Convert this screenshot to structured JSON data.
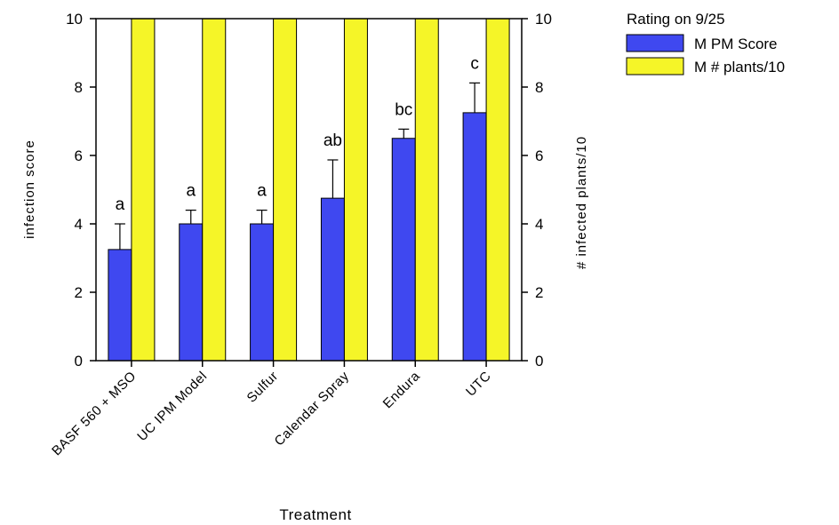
{
  "chart_data": {
    "type": "bar",
    "categories": [
      "BASF 560 + MSO",
      "UC IPM Model",
      "Sulfur",
      "Calendar Spray",
      "Endura",
      "UTC"
    ],
    "series": [
      {
        "name": "M PM Score",
        "axis": "left",
        "color": "#3f48f0",
        "values": [
          3.25,
          4.0,
          4.0,
          4.75,
          6.5,
          7.25
        ],
        "error_plus": [
          0.75,
          0.4,
          0.4,
          1.12,
          0.27,
          0.87
        ]
      },
      {
        "name": "M # plants/10",
        "axis": "right",
        "color": "#f5f528",
        "values": [
          10,
          10,
          10,
          10,
          10,
          10
        ]
      }
    ],
    "significance_labels": [
      "a",
      "a",
      "a",
      "ab",
      "bc",
      "c"
    ],
    "xlabel": "Treatment",
    "ylabel": "infection  score",
    "y2label": "# infected  plants/10",
    "ylim": [
      0,
      10
    ],
    "y2lim": [
      0,
      10
    ],
    "yticks": [
      0,
      2,
      4,
      6,
      8,
      10
    ],
    "legend": {
      "title": "Rating on 9/25",
      "position": "top-right-outside"
    },
    "grid": false
  }
}
